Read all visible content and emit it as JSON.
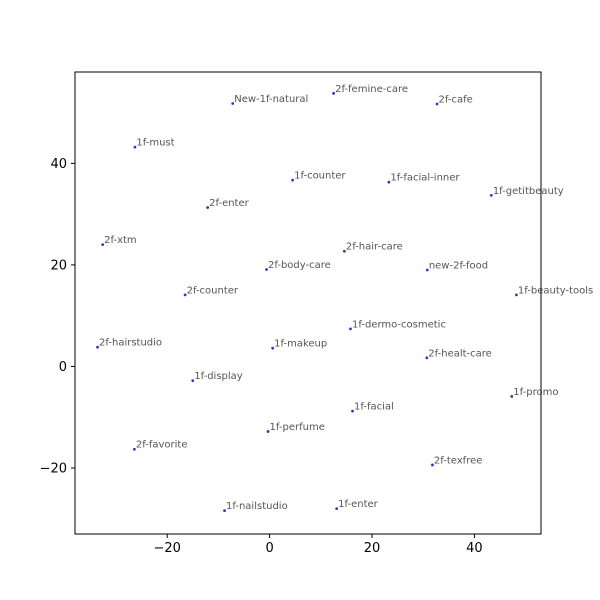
{
  "chart_data": {
    "type": "scatter",
    "title": "",
    "xlabel": "",
    "ylabel": "",
    "xlim": [
      -38,
      53
    ],
    "ylim": [
      -33,
      58
    ],
    "xticks": [
      -20,
      0,
      20,
      40
    ],
    "yticks": [
      -20,
      0,
      20,
      40
    ],
    "xtick_labels": [
      "−20",
      "0",
      "20",
      "40"
    ],
    "ytick_labels": [
      "−20",
      "0",
      "20",
      "40"
    ],
    "grid": false,
    "point_color": "#3333cc",
    "label_color": "#555555",
    "points": [
      {
        "label": "2f-femine-care",
        "x": 12.5,
        "y": 53.8
      },
      {
        "label": "New-1f-natural",
        "x": -7.2,
        "y": 51.8
      },
      {
        "label": "2f-cafe",
        "x": 32.7,
        "y": 51.7
      },
      {
        "label": "1f-must",
        "x": -26.3,
        "y": 43.2
      },
      {
        "label": "1f-counter",
        "x": 4.5,
        "y": 36.7
      },
      {
        "label": "1f-facial-inner",
        "x": 23.3,
        "y": 36.3
      },
      {
        "label": "1f-getitbeauty",
        "x": 43.3,
        "y": 33.7
      },
      {
        "label": "2f-enter",
        "x": -12.1,
        "y": 31.3
      },
      {
        "label": "2f-xtm",
        "x": -32.6,
        "y": 24.0
      },
      {
        "label": "2f-hair-care",
        "x": 14.6,
        "y": 22.7
      },
      {
        "label": "2f-body-care",
        "x": -0.6,
        "y": 19.1
      },
      {
        "label": "new-2f-food",
        "x": 30.8,
        "y": 19.0
      },
      {
        "label": "2f-counter",
        "x": -16.5,
        "y": 14.1
      },
      {
        "label": "1f-beauty-tools",
        "x": 48.2,
        "y": 14.1
      },
      {
        "label": "1f-dermo-cosmetic",
        "x": 15.8,
        "y": 7.4
      },
      {
        "label": "2f-hairstudio",
        "x": -33.6,
        "y": 3.8
      },
      {
        "label": "1f-makeup",
        "x": 0.6,
        "y": 3.6
      },
      {
        "label": "2f-healt-care",
        "x": 30.7,
        "y": 1.7
      },
      {
        "label": "1f-display",
        "x": -15.0,
        "y": -2.8
      },
      {
        "label": "1f-promo",
        "x": 47.3,
        "y": -5.9
      },
      {
        "label": "1f-facial",
        "x": 16.2,
        "y": -8.8
      },
      {
        "label": "1f-perfume",
        "x": -0.3,
        "y": -12.8
      },
      {
        "label": "2f-favorite",
        "x": -26.4,
        "y": -16.3
      },
      {
        "label": "2f-texfree",
        "x": 31.8,
        "y": -19.4
      },
      {
        "label": "1f-nailstudio",
        "x": -8.8,
        "y": -28.4
      },
      {
        "label": "1f-enter",
        "x": 13.1,
        "y": -28.0
      }
    ]
  }
}
